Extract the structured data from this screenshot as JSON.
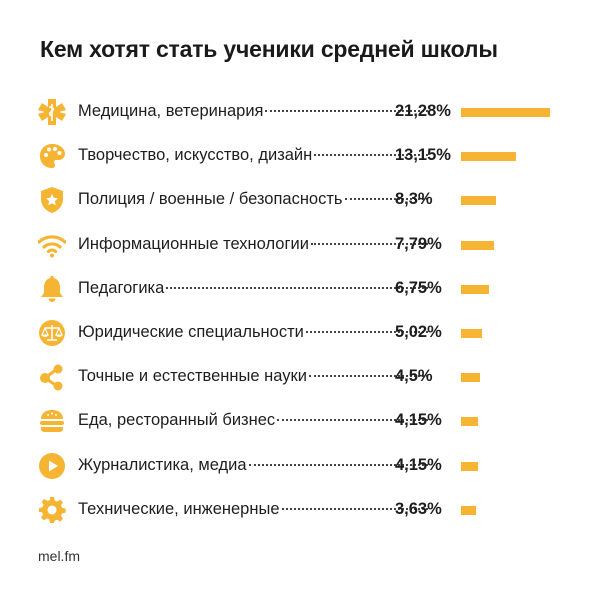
{
  "title": "Кем хотят стать ученики средней школы",
  "footer": "mel.fm",
  "accent_color": "#f5b532",
  "chart_data": {
    "type": "bar",
    "orientation": "horizontal",
    "title": "Кем хотят стать ученики средней школы",
    "categories": [
      "Медицина, ветеринария",
      "Творчество, искусство, дизайн",
      "Полиция / военные / безопасность",
      "Информационные технологии",
      "Педагогика",
      "Юридические специальности",
      "Точные и естественные науки",
      "Еда, ресторанный бизнес",
      "Журналистика, медиа",
      "Технические, инженерные"
    ],
    "values": [
      21.28,
      13.15,
      8.3,
      7.79,
      6.75,
      5.02,
      4.5,
      4.15,
      4.15,
      3.63
    ],
    "value_labels": [
      "21,28%",
      "13,15%",
      "8,3%",
      "7,79%",
      "6,75%",
      "5,02%",
      "4,5%",
      "4,15%",
      "4,15%",
      "3,63%"
    ],
    "icons": [
      "medical-caduceus-icon",
      "palette-icon",
      "police-shield-icon",
      "wifi-icon",
      "bell-icon",
      "scales-icon",
      "molecule-icon",
      "burger-icon",
      "play-icon",
      "gear-icon"
    ],
    "xlim": [
      0,
      21.28
    ]
  }
}
